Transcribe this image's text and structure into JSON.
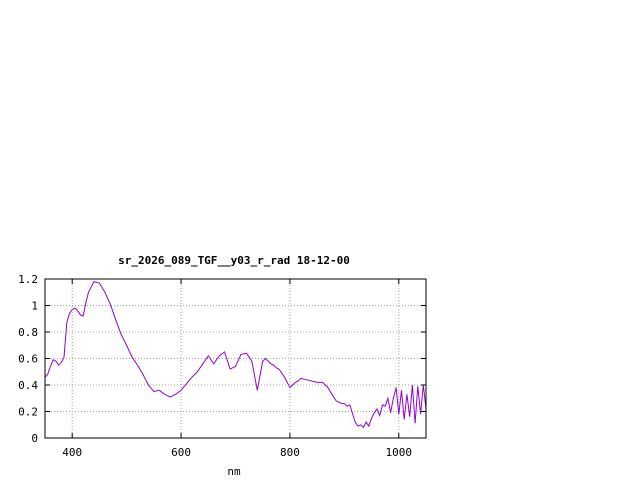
{
  "chart_data": {
    "type": "line",
    "title": "sr_2026_089_TGF__y03_r_rad 18-12-00",
    "xlabel": "nm",
    "ylabel": "",
    "xlim": [
      350,
      1050
    ],
    "ylim": [
      0,
      1.2
    ],
    "xticks": [
      400,
      600,
      800,
      1000
    ],
    "xtick_labels": [
      "400",
      "600",
      "800",
      "1000"
    ],
    "yticks": [
      0,
      0.2,
      0.4,
      0.6,
      0.8,
      1,
      1.2
    ],
    "ytick_labels": [
      "0",
      "0.2",
      "0.4",
      "0.6",
      "0.8",
      "1",
      "1.2"
    ],
    "grid": true,
    "legend": "none",
    "series": [
      {
        "color": "#9400d3",
        "x": [
          350,
          355,
          360,
          365,
          370,
          375,
          380,
          385,
          390,
          395,
          400,
          405,
          410,
          415,
          420,
          425,
          430,
          440,
          450,
          460,
          470,
          480,
          490,
          500,
          510,
          520,
          530,
          540,
          550,
          560,
          570,
          580,
          590,
          600,
          610,
          620,
          630,
          640,
          650,
          660,
          670,
          680,
          690,
          700,
          710,
          720,
          730,
          740,
          750,
          755,
          760,
          765,
          770,
          775,
          780,
          790,
          800,
          805,
          810,
          815,
          820,
          830,
          840,
          850,
          860,
          870,
          880,
          885,
          890,
          895,
          900,
          905,
          910,
          920,
          925,
          930,
          935,
          940,
          945,
          950,
          955,
          960,
          965,
          970,
          975,
          980,
          985,
          990,
          995,
          1000,
          1005,
          1010,
          1015,
          1020,
          1025,
          1030,
          1035,
          1040,
          1045,
          1050
        ],
        "y": [
          0.46,
          0.48,
          0.54,
          0.59,
          0.58,
          0.55,
          0.57,
          0.61,
          0.87,
          0.94,
          0.97,
          0.98,
          0.96,
          0.93,
          0.92,
          1.02,
          1.1,
          1.18,
          1.17,
          1.1,
          1.01,
          0.89,
          0.78,
          0.7,
          0.61,
          0.55,
          0.48,
          0.4,
          0.35,
          0.36,
          0.33,
          0.31,
          0.33,
          0.36,
          0.41,
          0.46,
          0.5,
          0.56,
          0.62,
          0.56,
          0.62,
          0.65,
          0.52,
          0.54,
          0.63,
          0.64,
          0.58,
          0.36,
          0.58,
          0.6,
          0.58,
          0.56,
          0.55,
          0.53,
          0.52,
          0.46,
          0.38,
          0.4,
          0.42,
          0.43,
          0.45,
          0.44,
          0.43,
          0.42,
          0.42,
          0.38,
          0.31,
          0.28,
          0.27,
          0.26,
          0.26,
          0.24,
          0.25,
          0.12,
          0.09,
          0.1,
          0.08,
          0.12,
          0.09,
          0.15,
          0.19,
          0.22,
          0.17,
          0.25,
          0.24,
          0.3,
          0.19,
          0.3,
          0.38,
          0.18,
          0.36,
          0.14,
          0.33,
          0.16,
          0.4,
          0.11,
          0.39,
          0.18,
          0.4,
          0.22
        ]
      }
    ]
  }
}
